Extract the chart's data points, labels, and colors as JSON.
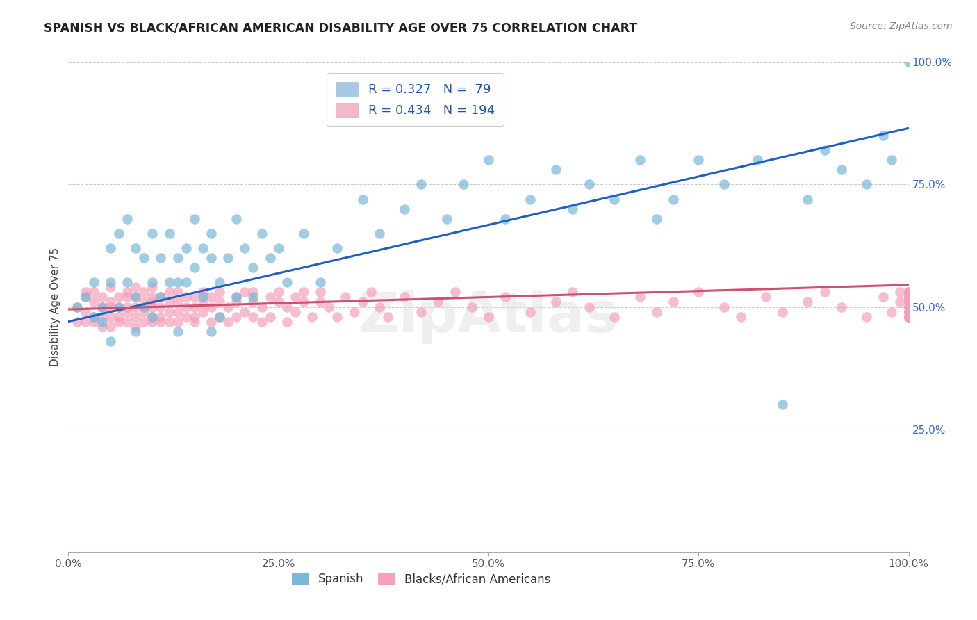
{
  "title": "SPANISH VS BLACK/AFRICAN AMERICAN DISABILITY AGE OVER 75 CORRELATION CHART",
  "source": "Source: ZipAtlas.com",
  "ylabel": "Disability Age Over 75",
  "blue_color": "#7ab8d9",
  "pink_color": "#f4a0b8",
  "blue_line_color": "#2060c0",
  "pink_line_color": "#d05070",
  "watermark": "ZipAtlas",
  "blue_line_x0": 0.0,
  "blue_line_y0": 0.47,
  "blue_line_x1": 1.0,
  "blue_line_y1": 0.865,
  "pink_line_x0": 0.0,
  "pink_line_y0": 0.495,
  "pink_line_x1": 1.0,
  "pink_line_y1": 0.545,
  "legend_upper_labels": [
    "R = 0.327   N =  79",
    "R = 0.434   N = 194"
  ],
  "legend_upper_colors": [
    "#a8c8e8",
    "#f4b8c8"
  ],
  "legend_lower_labels": [
    "Spanish",
    "Blacks/African Americans"
  ],
  "legend_lower_colors": [
    "#7ab8d9",
    "#f4a0b8"
  ],
  "xlim": [
    0.0,
    1.0
  ],
  "ylim": [
    0.0,
    1.0
  ],
  "xtick_vals": [
    0.0,
    0.25,
    0.5,
    0.75,
    1.0
  ],
  "xticklabels": [
    "0.0%",
    "25.0%",
    "50.0%",
    "75.0%",
    "100.0%"
  ],
  "ytick_right_vals": [
    0.25,
    0.5,
    0.75,
    1.0
  ],
  "ytick_right_labels": [
    "25.0%",
    "50.0%",
    "75.0%",
    "100.0%"
  ],
  "grid_lines": [
    0.25,
    0.5,
    0.75,
    1.0
  ],
  "spanish_x": [
    0.01,
    0.02,
    0.03,
    0.03,
    0.04,
    0.04,
    0.05,
    0.05,
    0.05,
    0.06,
    0.06,
    0.07,
    0.07,
    0.08,
    0.08,
    0.08,
    0.09,
    0.09,
    0.1,
    0.1,
    0.1,
    0.11,
    0.11,
    0.12,
    0.12,
    0.13,
    0.13,
    0.13,
    0.14,
    0.14,
    0.15,
    0.15,
    0.16,
    0.16,
    0.17,
    0.17,
    0.17,
    0.18,
    0.18,
    0.19,
    0.2,
    0.2,
    0.21,
    0.22,
    0.22,
    0.23,
    0.24,
    0.25,
    0.26,
    0.28,
    0.3,
    0.32,
    0.35,
    0.37,
    0.4,
    0.42,
    0.45,
    0.47,
    0.5,
    0.52,
    0.55,
    0.58,
    0.6,
    0.62,
    0.65,
    0.68,
    0.7,
    0.72,
    0.75,
    0.78,
    0.82,
    0.85,
    0.88,
    0.9,
    0.92,
    0.95,
    0.97,
    0.98,
    1.0
  ],
  "spanish_y": [
    0.5,
    0.52,
    0.48,
    0.55,
    0.5,
    0.47,
    0.62,
    0.55,
    0.43,
    0.65,
    0.5,
    0.68,
    0.55,
    0.62,
    0.52,
    0.45,
    0.6,
    0.5,
    0.65,
    0.55,
    0.48,
    0.6,
    0.52,
    0.65,
    0.55,
    0.6,
    0.55,
    0.45,
    0.62,
    0.55,
    0.68,
    0.58,
    0.62,
    0.52,
    0.65,
    0.6,
    0.45,
    0.55,
    0.48,
    0.6,
    0.68,
    0.52,
    0.62,
    0.58,
    0.52,
    0.65,
    0.6,
    0.62,
    0.55,
    0.65,
    0.55,
    0.62,
    0.72,
    0.65,
    0.7,
    0.75,
    0.68,
    0.75,
    0.8,
    0.68,
    0.72,
    0.78,
    0.7,
    0.75,
    0.72,
    0.8,
    0.68,
    0.72,
    0.8,
    0.75,
    0.8,
    0.3,
    0.72,
    0.82,
    0.78,
    0.75,
    0.85,
    0.8,
    1.0
  ],
  "black_x": [
    0.01,
    0.01,
    0.02,
    0.02,
    0.02,
    0.02,
    0.03,
    0.03,
    0.03,
    0.03,
    0.04,
    0.04,
    0.04,
    0.04,
    0.05,
    0.05,
    0.05,
    0.05,
    0.05,
    0.06,
    0.06,
    0.06,
    0.06,
    0.07,
    0.07,
    0.07,
    0.07,
    0.07,
    0.08,
    0.08,
    0.08,
    0.08,
    0.08,
    0.09,
    0.09,
    0.09,
    0.09,
    0.1,
    0.1,
    0.1,
    0.1,
    0.1,
    0.1,
    0.11,
    0.11,
    0.11,
    0.11,
    0.12,
    0.12,
    0.12,
    0.12,
    0.13,
    0.13,
    0.13,
    0.13,
    0.14,
    0.14,
    0.14,
    0.15,
    0.15,
    0.15,
    0.15,
    0.16,
    0.16,
    0.16,
    0.17,
    0.17,
    0.17,
    0.18,
    0.18,
    0.18,
    0.19,
    0.19,
    0.2,
    0.2,
    0.2,
    0.21,
    0.21,
    0.22,
    0.22,
    0.22,
    0.23,
    0.23,
    0.24,
    0.24,
    0.25,
    0.25,
    0.26,
    0.26,
    0.27,
    0.27,
    0.28,
    0.28,
    0.29,
    0.3,
    0.3,
    0.31,
    0.32,
    0.33,
    0.34,
    0.35,
    0.36,
    0.37,
    0.38,
    0.4,
    0.42,
    0.44,
    0.46,
    0.48,
    0.5,
    0.52,
    0.55,
    0.58,
    0.6,
    0.62,
    0.65,
    0.68,
    0.7,
    0.72,
    0.75,
    0.78,
    0.8,
    0.83,
    0.85,
    0.88,
    0.9,
    0.92,
    0.95,
    0.97,
    0.98,
    0.99,
    0.99,
    1.0,
    1.0,
    1.0,
    1.0,
    1.0,
    1.0,
    1.0,
    1.0,
    1.0,
    1.0,
    1.0,
    1.0,
    1.0,
    1.0,
    1.0,
    1.0,
    1.0,
    1.0,
    1.0,
    1.0,
    1.0,
    1.0,
    1.0,
    1.0,
    1.0,
    1.0,
    1.0,
    1.0,
    1.0,
    1.0,
    1.0,
    1.0,
    1.0,
    1.0,
    1.0,
    1.0,
    1.0,
    1.0,
    1.0,
    1.0,
    1.0,
    1.0,
    1.0,
    1.0,
    1.0,
    1.0,
    1.0,
    1.0,
    1.0,
    1.0,
    1.0,
    1.0,
    1.0,
    1.0,
    1.0,
    1.0,
    1.0
  ],
  "black_y": [
    0.5,
    0.47,
    0.52,
    0.49,
    0.47,
    0.53,
    0.51,
    0.48,
    0.53,
    0.47,
    0.5,
    0.48,
    0.52,
    0.46,
    0.51,
    0.48,
    0.5,
    0.46,
    0.54,
    0.5,
    0.47,
    0.52,
    0.48,
    0.5,
    0.47,
    0.52,
    0.49,
    0.53,
    0.5,
    0.48,
    0.52,
    0.46,
    0.54,
    0.51,
    0.49,
    0.53,
    0.47,
    0.5,
    0.48,
    0.52,
    0.47,
    0.51,
    0.54,
    0.5,
    0.48,
    0.52,
    0.47,
    0.51,
    0.49,
    0.53,
    0.47,
    0.51,
    0.49,
    0.53,
    0.47,
    0.5,
    0.48,
    0.52,
    0.5,
    0.47,
    0.52,
    0.48,
    0.51,
    0.49,
    0.53,
    0.5,
    0.47,
    0.52,
    0.51,
    0.48,
    0.53,
    0.5,
    0.47,
    0.52,
    0.48,
    0.51,
    0.53,
    0.49,
    0.51,
    0.48,
    0.53,
    0.5,
    0.47,
    0.52,
    0.48,
    0.51,
    0.53,
    0.5,
    0.47,
    0.52,
    0.49,
    0.51,
    0.53,
    0.48,
    0.51,
    0.53,
    0.5,
    0.48,
    0.52,
    0.49,
    0.51,
    0.53,
    0.5,
    0.48,
    0.52,
    0.49,
    0.51,
    0.53,
    0.5,
    0.48,
    0.52,
    0.49,
    0.51,
    0.53,
    0.5,
    0.48,
    0.52,
    0.49,
    0.51,
    0.53,
    0.5,
    0.48,
    0.52,
    0.49,
    0.51,
    0.53,
    0.5,
    0.48,
    0.52,
    0.49,
    0.51,
    0.53,
    0.5,
    0.48,
    0.52,
    0.49,
    0.51,
    0.53,
    0.5,
    0.48,
    0.52,
    0.49,
    0.51,
    0.53,
    0.5,
    0.48,
    0.52,
    0.49,
    0.51,
    0.53,
    0.5,
    0.48,
    0.52,
    0.49,
    0.51,
    0.53,
    0.5,
    0.48,
    0.52,
    0.49,
    0.51,
    0.53,
    0.5,
    0.48,
    0.52,
    0.49,
    0.51,
    0.53,
    0.5,
    0.48,
    0.52,
    0.49,
    0.51,
    0.53,
    0.5,
    0.48,
    0.52,
    0.49,
    0.51,
    0.53,
    0.5,
    0.48,
    0.52,
    0.49,
    0.51,
    0.53,
    0.5,
    0.48,
    0.52
  ]
}
